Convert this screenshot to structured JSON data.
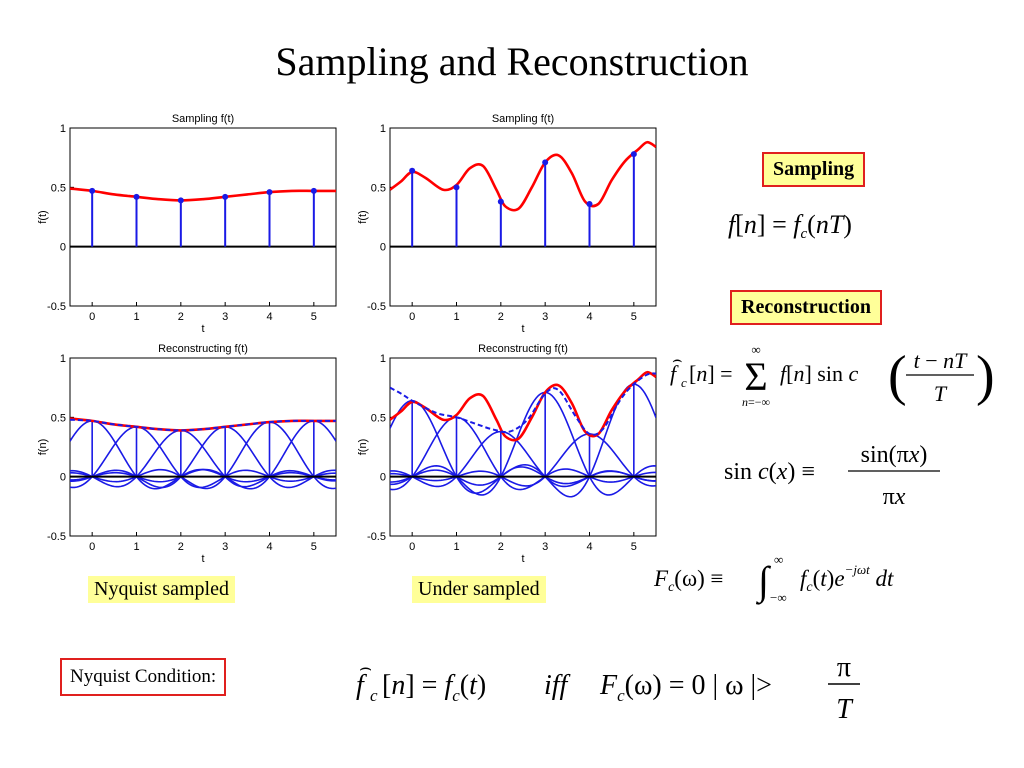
{
  "slide": {
    "title": "Sampling and Reconstruction",
    "labels": {
      "sampling": "Sampling",
      "reconstruction": "Reconstruction",
      "nyquist_sampled": "Nyquist sampled",
      "under_sampled": "Under sampled",
      "nyquist_condition": "Nyquist Condition:"
    },
    "equations": {
      "sampling": "f[n] = f_c(nT)",
      "reconstruction": "f̂_c[n] = Σ_{n=−∞}^{∞} f[n] sinc((t − nT)/T)",
      "sinc": "sinc(x) ≡ sin(πx)/(πx)",
      "fourier": "F_c(ω) ≡ ∫_{−∞}^{∞} f_c(t) e^{−jωt} dt",
      "nyquist": "f̂_c[n] = f_c(t) iff F_c(ω) = 0 |ω| > π/T"
    },
    "colors": {
      "signal": "#ff0000",
      "samples": "#1a1ae6",
      "label_fill": "#ffff99",
      "border": "#e0201e"
    }
  },
  "chart_data": [
    {
      "type": "line",
      "title": "Sampling f(t)",
      "xlabel": "t",
      "ylabel": "f(t)",
      "xlim": [
        -0.5,
        5.5
      ],
      "ylim": [
        -0.5,
        1
      ],
      "xticks": [
        0,
        1,
        2,
        3,
        4,
        5
      ],
      "yticks": [
        -0.5,
        0,
        0.5,
        1
      ],
      "series": [
        {
          "style": "curve",
          "color": "#ff0000",
          "x": [
            -0.5,
            0,
            0.5,
            1,
            1.5,
            2,
            2.5,
            3,
            3.5,
            4,
            4.5,
            5,
            5.5
          ],
          "y": [
            0.49,
            0.47,
            0.44,
            0.42,
            0.4,
            0.39,
            0.4,
            0.42,
            0.44,
            0.46,
            0.47,
            0.47,
            0.47
          ]
        },
        {
          "style": "stem",
          "color": "#1a1ae6",
          "x": [
            0,
            1,
            2,
            3,
            4,
            5
          ],
          "y": [
            0.47,
            0.42,
            0.39,
            0.42,
            0.46,
            0.47
          ]
        }
      ]
    },
    {
      "type": "line",
      "title": "Sampling f(t)",
      "xlabel": "t",
      "ylabel": "f(t)",
      "xlim": [
        -0.5,
        5.5
      ],
      "ylim": [
        -0.5,
        1
      ],
      "xticks": [
        0,
        1,
        2,
        3,
        4,
        5
      ],
      "yticks": [
        -0.5,
        0,
        0.5,
        1
      ],
      "series": [
        {
          "style": "curve",
          "color": "#ff0000",
          "x": [
            -0.5,
            -0.25,
            0,
            0.3,
            0.7,
            1,
            1.3,
            1.6,
            1.9,
            2.1,
            2.4,
            2.7,
            3,
            3.3,
            3.6,
            3.9,
            4.2,
            4.5,
            4.8,
            5.1,
            5.3,
            5.5
          ],
          "y": [
            0.48,
            0.55,
            0.63,
            0.58,
            0.48,
            0.52,
            0.66,
            0.68,
            0.48,
            0.34,
            0.32,
            0.5,
            0.71,
            0.77,
            0.62,
            0.38,
            0.36,
            0.56,
            0.72,
            0.82,
            0.88,
            0.84
          ]
        },
        {
          "style": "stem",
          "color": "#1a1ae6",
          "x": [
            0,
            1,
            2,
            3,
            4,
            5
          ],
          "y": [
            0.64,
            0.5,
            0.38,
            0.71,
            0.36,
            0.78
          ]
        }
      ]
    },
    {
      "type": "line",
      "title": "Reconstructing f(t)",
      "xlabel": "t",
      "ylabel": "f(n)",
      "xlim": [
        -0.5,
        5.5
      ],
      "ylim": [
        -0.5,
        1
      ],
      "xticks": [
        0,
        1,
        2,
        3,
        4,
        5
      ],
      "yticks": [
        -0.5,
        0,
        0.5,
        1
      ],
      "series": [
        {
          "style": "sinc",
          "color": "#1a1ae6",
          "x": [
            0,
            1,
            2,
            3,
            4,
            5
          ],
          "y": [
            0.47,
            0.42,
            0.39,
            0.42,
            0.46,
            0.47
          ]
        },
        {
          "style": "curve",
          "color": "#ff0000",
          "x": [
            -0.5,
            0,
            0.5,
            1,
            1.5,
            2,
            2.5,
            3,
            3.5,
            4,
            4.5,
            5,
            5.5
          ],
          "y": [
            0.49,
            0.47,
            0.44,
            0.42,
            0.4,
            0.39,
            0.4,
            0.42,
            0.44,
            0.46,
            0.47,
            0.47,
            0.47
          ]
        },
        {
          "style": "dashed",
          "color": "#1a1ae6",
          "x": [
            -0.5,
            0,
            0.5,
            1,
            1.5,
            2,
            2.5,
            3,
            3.5,
            4,
            4.5,
            5,
            5.5
          ],
          "y": [
            0.48,
            0.47,
            0.44,
            0.42,
            0.4,
            0.39,
            0.4,
            0.42,
            0.44,
            0.46,
            0.47,
            0.47,
            0.47
          ]
        }
      ]
    },
    {
      "type": "line",
      "title": "Reconstructing f(t)",
      "xlabel": "t",
      "ylabel": "f(n)",
      "xlim": [
        -0.5,
        5.5
      ],
      "ylim": [
        -0.5,
        1
      ],
      "xticks": [
        0,
        1,
        2,
        3,
        4,
        5
      ],
      "yticks": [
        -0.5,
        0,
        0.5,
        1
      ],
      "series": [
        {
          "style": "sinc",
          "color": "#1a1ae6",
          "x": [
            0,
            1,
            2,
            3,
            4,
            5
          ],
          "y": [
            0.64,
            0.5,
            0.38,
            0.71,
            0.36,
            0.78
          ]
        },
        {
          "style": "curve",
          "color": "#ff0000",
          "x": [
            -0.5,
            -0.25,
            0,
            0.3,
            0.7,
            1,
            1.3,
            1.6,
            1.9,
            2.1,
            2.4,
            2.7,
            3,
            3.3,
            3.6,
            3.9,
            4.2,
            4.5,
            4.8,
            5.1,
            5.3,
            5.5
          ],
          "y": [
            0.48,
            0.55,
            0.63,
            0.58,
            0.48,
            0.52,
            0.66,
            0.68,
            0.48,
            0.34,
            0.32,
            0.5,
            0.71,
            0.77,
            0.62,
            0.38,
            0.36,
            0.56,
            0.72,
            0.82,
            0.88,
            0.84
          ]
        },
        {
          "style": "dashed",
          "color": "#1a1ae6",
          "x": [
            -0.5,
            -0.25,
            0,
            0.3,
            0.6,
            1,
            1.4,
            1.8,
            2.2,
            2.6,
            3,
            3.3,
            3.7,
            4,
            4.3,
            4.7,
            5,
            5.3,
            5.5
          ],
          "y": [
            0.75,
            0.7,
            0.64,
            0.58,
            0.53,
            0.5,
            0.45,
            0.4,
            0.38,
            0.48,
            0.7,
            0.73,
            0.5,
            0.36,
            0.4,
            0.65,
            0.78,
            0.86,
            0.87
          ]
        }
      ]
    }
  ]
}
